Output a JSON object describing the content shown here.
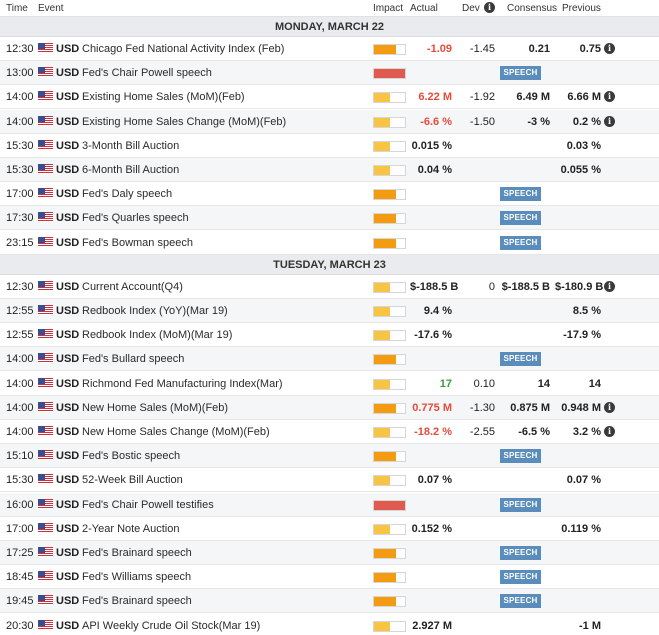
{
  "columns": {
    "time": "Time",
    "event": "Event",
    "impact": "Impact",
    "actual": "Actual",
    "dev": "Dev",
    "consensus": "Consensus",
    "previous": "Previous"
  },
  "colors": {
    "impact_medium": "#f39c12",
    "impact_high": "#e05a4f",
    "impact_low": "#f7c443",
    "speech_badge": "#5a8dbb",
    "negative": "#e64b3b",
    "positive": "#3f9a3f"
  },
  "days": [
    {
      "label": "MONDAY, MARCH 22",
      "events": [
        {
          "time": "12:30",
          "currency": "USD",
          "event": "Chicago Fed National Activity Index (Feb)",
          "impact": "medium",
          "actual": "-1.09",
          "actual_color": "red",
          "dev": "-1.45",
          "consensus": "0.21",
          "previous": "0.75",
          "info": true,
          "speech": ""
        },
        {
          "time": "13:00",
          "currency": "USD",
          "event": "Fed's Chair Powell speech",
          "impact": "high",
          "actual": "",
          "actual_color": "",
          "dev": "",
          "consensus": "",
          "previous": "",
          "info": false,
          "speech": "SPEECH"
        },
        {
          "time": "14:00",
          "currency": "USD",
          "event": "Existing Home Sales (MoM)(Feb)",
          "impact": "low",
          "actual": "6.22 M",
          "actual_color": "red",
          "dev": "-1.92",
          "consensus": "6.49 M",
          "previous": "6.66 M",
          "info": true,
          "speech": ""
        },
        {
          "time": "14:00",
          "currency": "USD",
          "event": "Existing Home Sales Change (MoM)(Feb)",
          "impact": "low",
          "actual": "-6.6 %",
          "actual_color": "red",
          "dev": "-1.50",
          "consensus": "-3 %",
          "previous": "0.2 %",
          "info": true,
          "speech": ""
        },
        {
          "time": "15:30",
          "currency": "USD",
          "event": "3-Month Bill Auction",
          "impact": "low",
          "actual": "0.015 %",
          "actual_color": "dark",
          "dev": "",
          "consensus": "",
          "previous": "0.03 %",
          "info": false,
          "speech": ""
        },
        {
          "time": "15:30",
          "currency": "USD",
          "event": "6-Month Bill Auction",
          "impact": "low",
          "actual": "0.04 %",
          "actual_color": "dark",
          "dev": "",
          "consensus": "",
          "previous": "0.055 %",
          "info": false,
          "speech": ""
        },
        {
          "time": "17:00",
          "currency": "USD",
          "event": "Fed's Daly speech",
          "impact": "medium",
          "actual": "",
          "actual_color": "",
          "dev": "",
          "consensus": "",
          "previous": "",
          "info": false,
          "speech": "SPEECH"
        },
        {
          "time": "17:30",
          "currency": "USD",
          "event": "Fed's Quarles speech",
          "impact": "medium",
          "actual": "",
          "actual_color": "",
          "dev": "",
          "consensus": "",
          "previous": "",
          "info": false,
          "speech": "SPEECH"
        },
        {
          "time": "23:15",
          "currency": "USD",
          "event": "Fed's Bowman speech",
          "impact": "medium",
          "actual": "",
          "actual_color": "",
          "dev": "",
          "consensus": "",
          "previous": "",
          "info": false,
          "speech": "SPEECH"
        }
      ]
    },
    {
      "label": "TUESDAY, MARCH 23",
      "events": [
        {
          "time": "12:30",
          "currency": "USD",
          "event": "Current Account(Q4)",
          "impact": "low",
          "actual": "$-188.5 B",
          "actual_color": "dark",
          "dev": "0",
          "consensus": "$-188.5 B",
          "previous": "$-180.9 B",
          "info": true,
          "speech": ""
        },
        {
          "time": "12:55",
          "currency": "USD",
          "event": "Redbook Index (YoY)(Mar 19)",
          "impact": "low",
          "actual": "9.4 %",
          "actual_color": "dark",
          "dev": "",
          "consensus": "",
          "previous": "8.5 %",
          "info": false,
          "speech": ""
        },
        {
          "time": "12:55",
          "currency": "USD",
          "event": "Redbook Index (MoM)(Mar 19)",
          "impact": "low",
          "actual": "-17.6 %",
          "actual_color": "dark",
          "dev": "",
          "consensus": "",
          "previous": "-17.9 %",
          "info": false,
          "speech": ""
        },
        {
          "time": "14:00",
          "currency": "USD",
          "event": "Fed's Bullard speech",
          "impact": "medium",
          "actual": "",
          "actual_color": "",
          "dev": "",
          "consensus": "",
          "previous": "",
          "info": false,
          "speech": "SPEECH"
        },
        {
          "time": "14:00",
          "currency": "USD",
          "event": "Richmond Fed Manufacturing Index(Mar)",
          "impact": "low",
          "actual": "17",
          "actual_color": "green",
          "dev": "0.10",
          "consensus": "14",
          "previous": "14",
          "info": false,
          "speech": ""
        },
        {
          "time": "14:00",
          "currency": "USD",
          "event": "New Home Sales (MoM)(Feb)",
          "impact": "medium",
          "actual": "0.775 M",
          "actual_color": "red",
          "dev": "-1.30",
          "consensus": "0.875 M",
          "previous": "0.948 M",
          "info": true,
          "speech": ""
        },
        {
          "time": "14:00",
          "currency": "USD",
          "event": "New Home Sales Change (MoM)(Feb)",
          "impact": "low",
          "actual": "-18.2 %",
          "actual_color": "red",
          "dev": "-2.55",
          "consensus": "-6.5 %",
          "previous": "3.2 %",
          "info": true,
          "speech": ""
        },
        {
          "time": "15:10",
          "currency": "USD",
          "event": "Fed's Bostic speech",
          "impact": "medium",
          "actual": "",
          "actual_color": "",
          "dev": "",
          "consensus": "",
          "previous": "",
          "info": false,
          "speech": "SPEECH"
        },
        {
          "time": "15:30",
          "currency": "USD",
          "event": "52-Week Bill Auction",
          "impact": "low",
          "actual": "0.07 %",
          "actual_color": "dark",
          "dev": "",
          "consensus": "",
          "previous": "0.07 %",
          "info": false,
          "speech": ""
        },
        {
          "time": "16:00",
          "currency": "USD",
          "event": "Fed's Chair Powell testifies",
          "impact": "high",
          "actual": "",
          "actual_color": "",
          "dev": "",
          "consensus": "",
          "previous": "",
          "info": false,
          "speech": "SPEECH"
        },
        {
          "time": "17:00",
          "currency": "USD",
          "event": "2-Year Note Auction",
          "impact": "low",
          "actual": "0.152 %",
          "actual_color": "dark",
          "dev": "",
          "consensus": "",
          "previous": "0.119 %",
          "info": false,
          "speech": ""
        },
        {
          "time": "17:25",
          "currency": "USD",
          "event": "Fed's Brainard speech",
          "impact": "medium",
          "actual": "",
          "actual_color": "",
          "dev": "",
          "consensus": "",
          "previous": "",
          "info": false,
          "speech": "SPEECH"
        },
        {
          "time": "18:45",
          "currency": "USD",
          "event": "Fed's Williams speech",
          "impact": "medium",
          "actual": "",
          "actual_color": "",
          "dev": "",
          "consensus": "",
          "previous": "",
          "info": false,
          "speech": "SPEECH"
        },
        {
          "time": "19:45",
          "currency": "USD",
          "event": "Fed's Brainard speech",
          "impact": "medium",
          "actual": "",
          "actual_color": "",
          "dev": "",
          "consensus": "",
          "previous": "",
          "info": false,
          "speech": "SPEECH"
        },
        {
          "time": "20:30",
          "currency": "USD",
          "event": "API Weekly Crude Oil Stock(Mar 19)",
          "impact": "low",
          "actual": "2.927 M",
          "actual_color": "dark",
          "dev": "",
          "consensus": "",
          "previous": "-1 M",
          "info": false,
          "speech": ""
        }
      ]
    }
  ]
}
